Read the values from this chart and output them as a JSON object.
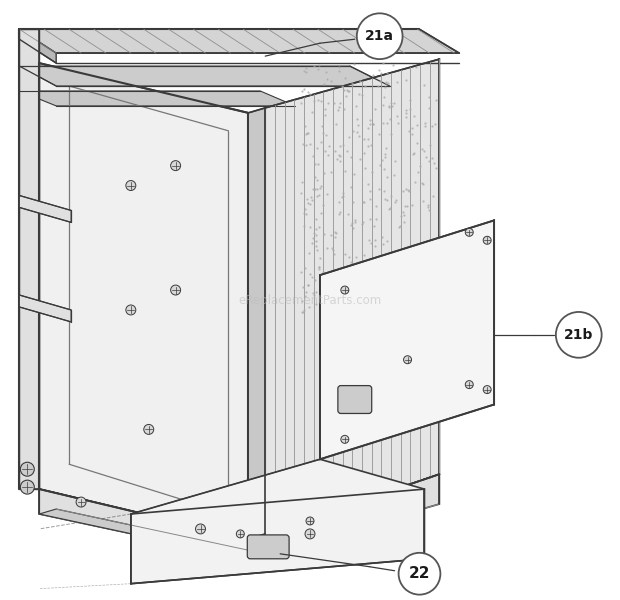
{
  "bg_color": "#ffffff",
  "fig_width": 6.2,
  "fig_height": 6.0,
  "dpi": 100,
  "line_color": "#3a3a3a",
  "light_fill": "#f0f0f0",
  "medium_fill": "#e0e0e0",
  "dark_fill": "#c8c8c8",
  "coil_fill": "#e5e5e5",
  "label_21a": "21a",
  "label_21b": "21b",
  "label_22": "22",
  "circle_facecolor": "#ffffff",
  "circle_edgecolor": "#555555",
  "watermark_text": "eReplacementParts.com",
  "watermark_color": "#bbbbbb",
  "watermark_alpha": 0.55
}
